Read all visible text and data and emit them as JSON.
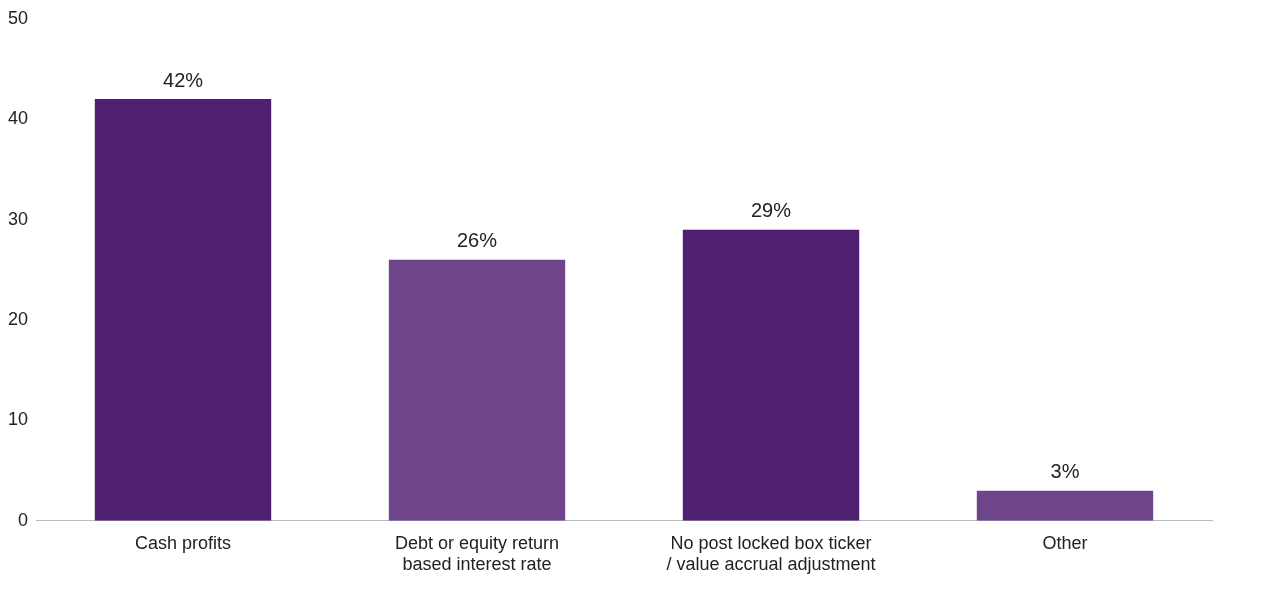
{
  "chart_data": {
    "type": "bar",
    "categories": [
      "Cash profits",
      "Debt or equity return based interest rate",
      "No post locked box ticker / value accrual adjustment",
      "Other"
    ],
    "values": [
      42,
      26,
      29,
      3
    ],
    "colors": [
      "#4f1f70",
      "#6e458b",
      "#4f1f70",
      "#6e458b"
    ],
    "value_labels": [
      "42%",
      "26%",
      "29%",
      "3%"
    ],
    "ylim": [
      0,
      50
    ],
    "yticks": [
      0,
      10,
      20,
      30,
      40,
      50
    ],
    "grid": false,
    "legend": false
  }
}
